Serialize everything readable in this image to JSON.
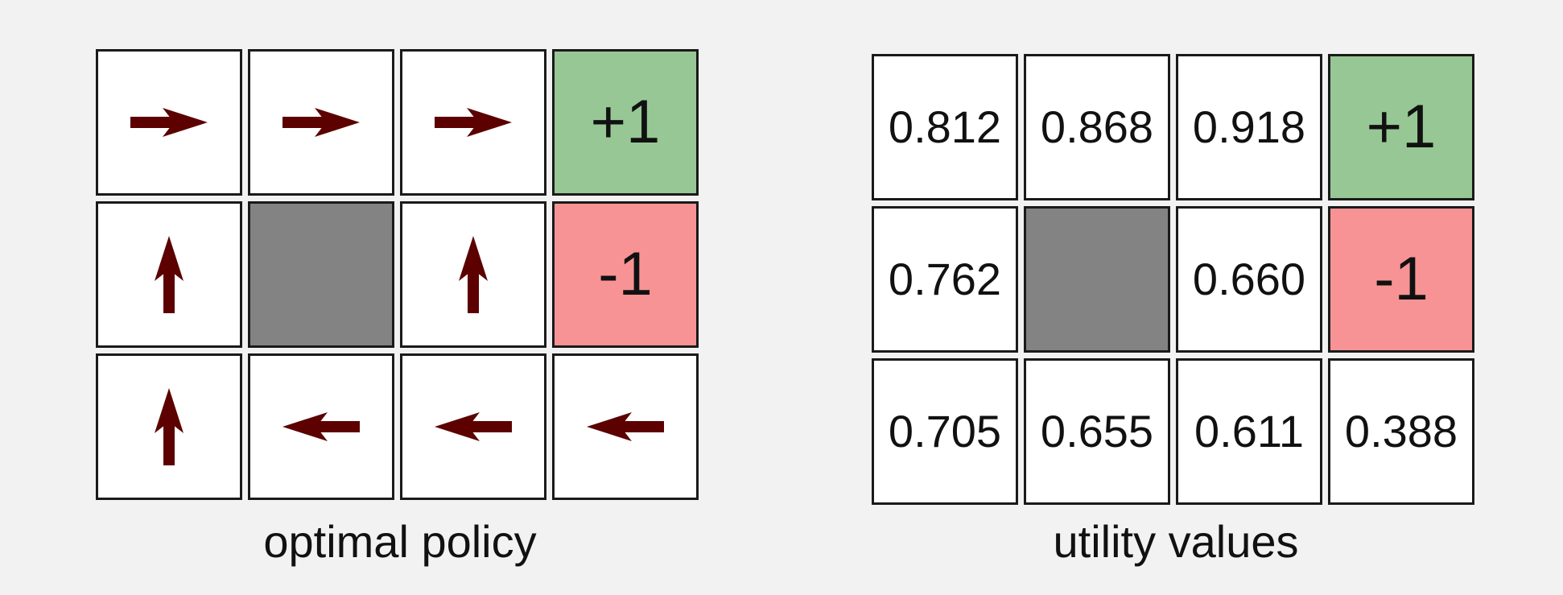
{
  "colors": {
    "background": "#f2f2f2",
    "cell": "#ffffff",
    "blocked": "#838383",
    "positive": "#97c795",
    "negative": "#f79394",
    "arrow": "#5c0000",
    "border": "#1a1a1a"
  },
  "policy": {
    "caption": "optimal policy",
    "rows": [
      [
        {
          "type": "arrow",
          "direction": "right",
          "icon": "arrow-right-icon"
        },
        {
          "type": "arrow",
          "direction": "right",
          "icon": "arrow-right-icon"
        },
        {
          "type": "arrow",
          "direction": "right",
          "icon": "arrow-right-icon"
        },
        {
          "type": "terminal",
          "label": "+1",
          "tone": "positive"
        }
      ],
      [
        {
          "type": "arrow",
          "direction": "up",
          "icon": "arrow-up-icon"
        },
        {
          "type": "blocked"
        },
        {
          "type": "arrow",
          "direction": "up",
          "icon": "arrow-up-icon"
        },
        {
          "type": "terminal",
          "label": "-1",
          "tone": "negative"
        }
      ],
      [
        {
          "type": "arrow",
          "direction": "up",
          "icon": "arrow-up-icon"
        },
        {
          "type": "arrow",
          "direction": "left",
          "icon": "arrow-left-icon"
        },
        {
          "type": "arrow",
          "direction": "left",
          "icon": "arrow-left-icon"
        },
        {
          "type": "arrow",
          "direction": "left",
          "icon": "arrow-left-icon"
        }
      ]
    ]
  },
  "utility": {
    "caption": "utility values",
    "rows": [
      [
        {
          "type": "value",
          "label": "0.812"
        },
        {
          "type": "value",
          "label": "0.868"
        },
        {
          "type": "value",
          "label": "0.918"
        },
        {
          "type": "terminal",
          "label": "+1",
          "tone": "positive"
        }
      ],
      [
        {
          "type": "value",
          "label": "0.762"
        },
        {
          "type": "blocked"
        },
        {
          "type": "value",
          "label": "0.660"
        },
        {
          "type": "terminal",
          "label": "-1",
          "tone": "negative"
        }
      ],
      [
        {
          "type": "value",
          "label": "0.705"
        },
        {
          "type": "value",
          "label": "0.655"
        },
        {
          "type": "value",
          "label": "0.611"
        },
        {
          "type": "value",
          "label": "0.388"
        }
      ]
    ]
  }
}
